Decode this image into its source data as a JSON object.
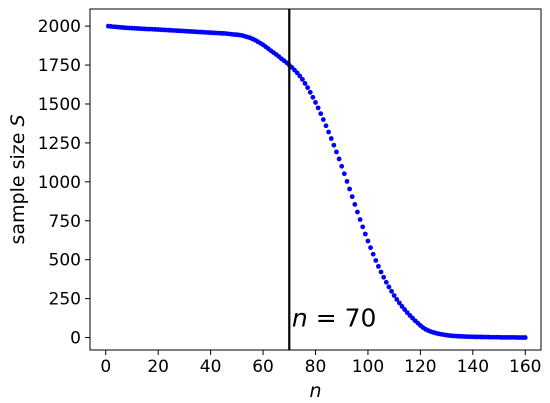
{
  "chart_data": {
    "type": "scatter",
    "title": "",
    "xlabel": "n",
    "ylabel_text": "sample size ",
    "ylabel_symbol": "S",
    "xlim": [
      -6,
      166
    ],
    "ylim": [
      -80,
      2110
    ],
    "xticks": [
      0,
      20,
      40,
      60,
      80,
      100,
      120,
      140,
      160
    ],
    "yticks": [
      0,
      250,
      500,
      750,
      1000,
      1250,
      1500,
      1750,
      2000
    ],
    "grid": false,
    "marker_color": "#0000ff",
    "series": [
      {
        "x": [
          1,
          2,
          3,
          4,
          5,
          6,
          7,
          8,
          9,
          10,
          11,
          12,
          13,
          14,
          15,
          16,
          17,
          18,
          19,
          20,
          21,
          22,
          23,
          24,
          25,
          26,
          27,
          28,
          29,
          30,
          31,
          32,
          33,
          34,
          35,
          36,
          37,
          38,
          39,
          40,
          41,
          42,
          43,
          44,
          45,
          46,
          47,
          48,
          49,
          50,
          51,
          52,
          53,
          54,
          55,
          56,
          57,
          58,
          59,
          60,
          61,
          62,
          63,
          64,
          65,
          66,
          67,
          68,
          69,
          70,
          71,
          72,
          73,
          74,
          75,
          76,
          77,
          78,
          79,
          80,
          81,
          82,
          83,
          84,
          85,
          86,
          87,
          88,
          89,
          90,
          91,
          92,
          93,
          94,
          95,
          96,
          97,
          98,
          99,
          100,
          101,
          102,
          103,
          104,
          105,
          106,
          107,
          108,
          109,
          110,
          111,
          112,
          113,
          114,
          115,
          116,
          117,
          118,
          119,
          120,
          121,
          122,
          123,
          124,
          125,
          126,
          127,
          128,
          129,
          130,
          131,
          132,
          133,
          134,
          135,
          136,
          137,
          138,
          139,
          140,
          141,
          142,
          143,
          144,
          145,
          146,
          147,
          148,
          149,
          150,
          151,
          152,
          153,
          154,
          155,
          156,
          157,
          158,
          159,
          160
        ],
        "y": [
          2000,
          1998,
          1996,
          1995,
          1993,
          1992,
          1990,
          1989,
          1988,
          1987,
          1986,
          1985,
          1984,
          1983,
          1982,
          1981,
          1981,
          1980,
          1979,
          1978,
          1977,
          1976,
          1975,
          1974,
          1973,
          1972,
          1971,
          1970,
          1969,
          1968,
          1967,
          1966,
          1965,
          1964,
          1963,
          1962,
          1961,
          1960,
          1959,
          1958,
          1957,
          1956,
          1955,
          1954,
          1953,
          1952,
          1950,
          1948,
          1946,
          1945,
          1943,
          1940,
          1935,
          1930,
          1925,
          1918,
          1910,
          1900,
          1890,
          1880,
          1868,
          1855,
          1842,
          1830,
          1818,
          1805,
          1790,
          1778,
          1765,
          1750,
          1735,
          1718,
          1700,
          1680,
          1658,
          1632,
          1605,
          1575,
          1543,
          1510,
          1475,
          1438,
          1400,
          1360,
          1320,
          1278,
          1235,
          1192,
          1147,
          1100,
          1052,
          1003,
          954,
          905,
          855,
          806,
          758,
          711,
          665,
          620,
          577,
          535,
          495,
          457,
          421,
          387,
          355,
          325,
          297,
          270,
          245,
          222,
          200,
          180,
          160,
          142,
          125,
          108,
          93,
          78,
          64,
          53,
          45,
          38,
          33,
          28,
          24,
          21,
          18,
          15,
          13,
          11,
          10,
          9,
          8,
          7,
          6,
          6,
          5,
          5,
          4,
          4,
          4,
          3,
          3,
          3,
          2,
          2,
          2,
          2,
          1,
          1,
          1,
          1,
          1,
          1,
          0,
          0,
          0,
          0
        ]
      }
    ],
    "vline": {
      "x": 70,
      "color": "#000000"
    },
    "annotation": {
      "label_var": "n",
      "label_rest": " = 70",
      "x": 71,
      "y": 70
    }
  }
}
